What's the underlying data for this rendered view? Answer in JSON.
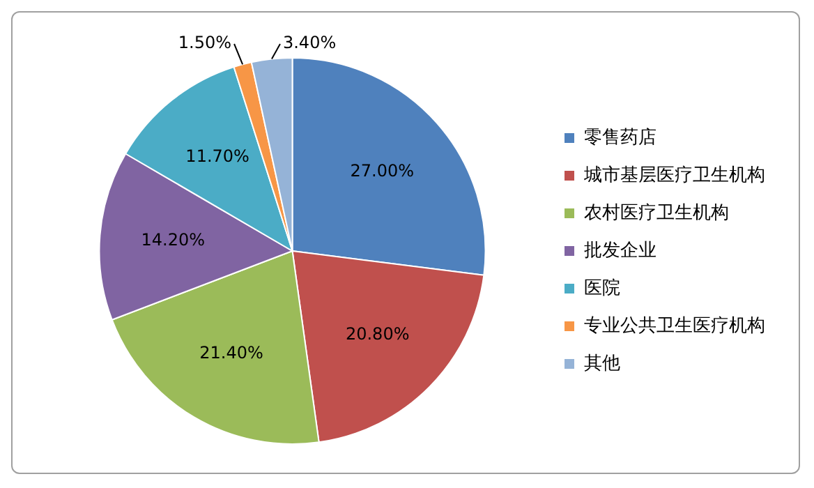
{
  "chart_data": {
    "type": "pie",
    "categories": [
      "零售药店",
      "城市基层医疗卫生机构",
      "农村医疗卫生机构",
      "批发企业",
      "医院",
      "专业公共卫生医疗机构",
      "其他"
    ],
    "values": [
      27.0,
      20.8,
      21.4,
      14.2,
      11.7,
      1.5,
      3.4
    ],
    "value_labels": [
      "27.00%",
      "20.80%",
      "21.40%",
      "14.20%",
      "11.70%",
      "1.50%",
      "3.40%"
    ],
    "colors": [
      "#4f81bd",
      "#c0504d",
      "#9bbb59",
      "#8064a2",
      "#4bacc6",
      "#f79646",
      "#95b3d7"
    ],
    "legend": "right"
  }
}
